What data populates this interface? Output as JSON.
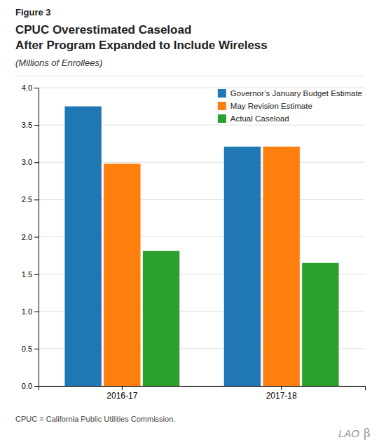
{
  "chart_data": {
    "type": "bar",
    "title": [
      "CPUC Overestimated Caseload",
      "After Program Expanded to Include Wireless"
    ],
    "subtitle": "(Millions of Enrollees)",
    "annotations": [
      "Figure 3",
      "CPUC = California Public Utilities Commission.",
      "LAO",
      "β"
    ],
    "categories": [
      "2016-17",
      "2017-18"
    ],
    "series": [
      {
        "name": "Governor’s January Budget Estimate",
        "values": [
          3.75,
          3.21
        ]
      },
      {
        "name": "May Revision Estimate",
        "values": [
          2.98,
          3.21
        ]
      },
      {
        "name": "Actual Caseload",
        "values": [
          1.81,
          1.65
        ]
      }
    ],
    "ylim": [
      0,
      4
    ],
    "yticks": [
      {
        "value": 0,
        "label": "0.0"
      },
      0.5,
      {
        "value": 1,
        "label": "1.0"
      },
      1.5,
      {
        "value": 2,
        "label": "2.0"
      },
      2.5,
      {
        "value": 3,
        "label": "3.0"
      },
      3.5,
      {
        "value": 4,
        "label": "4.0"
      }
    ],
    "grid": true,
    "legend": "upper right"
  }
}
